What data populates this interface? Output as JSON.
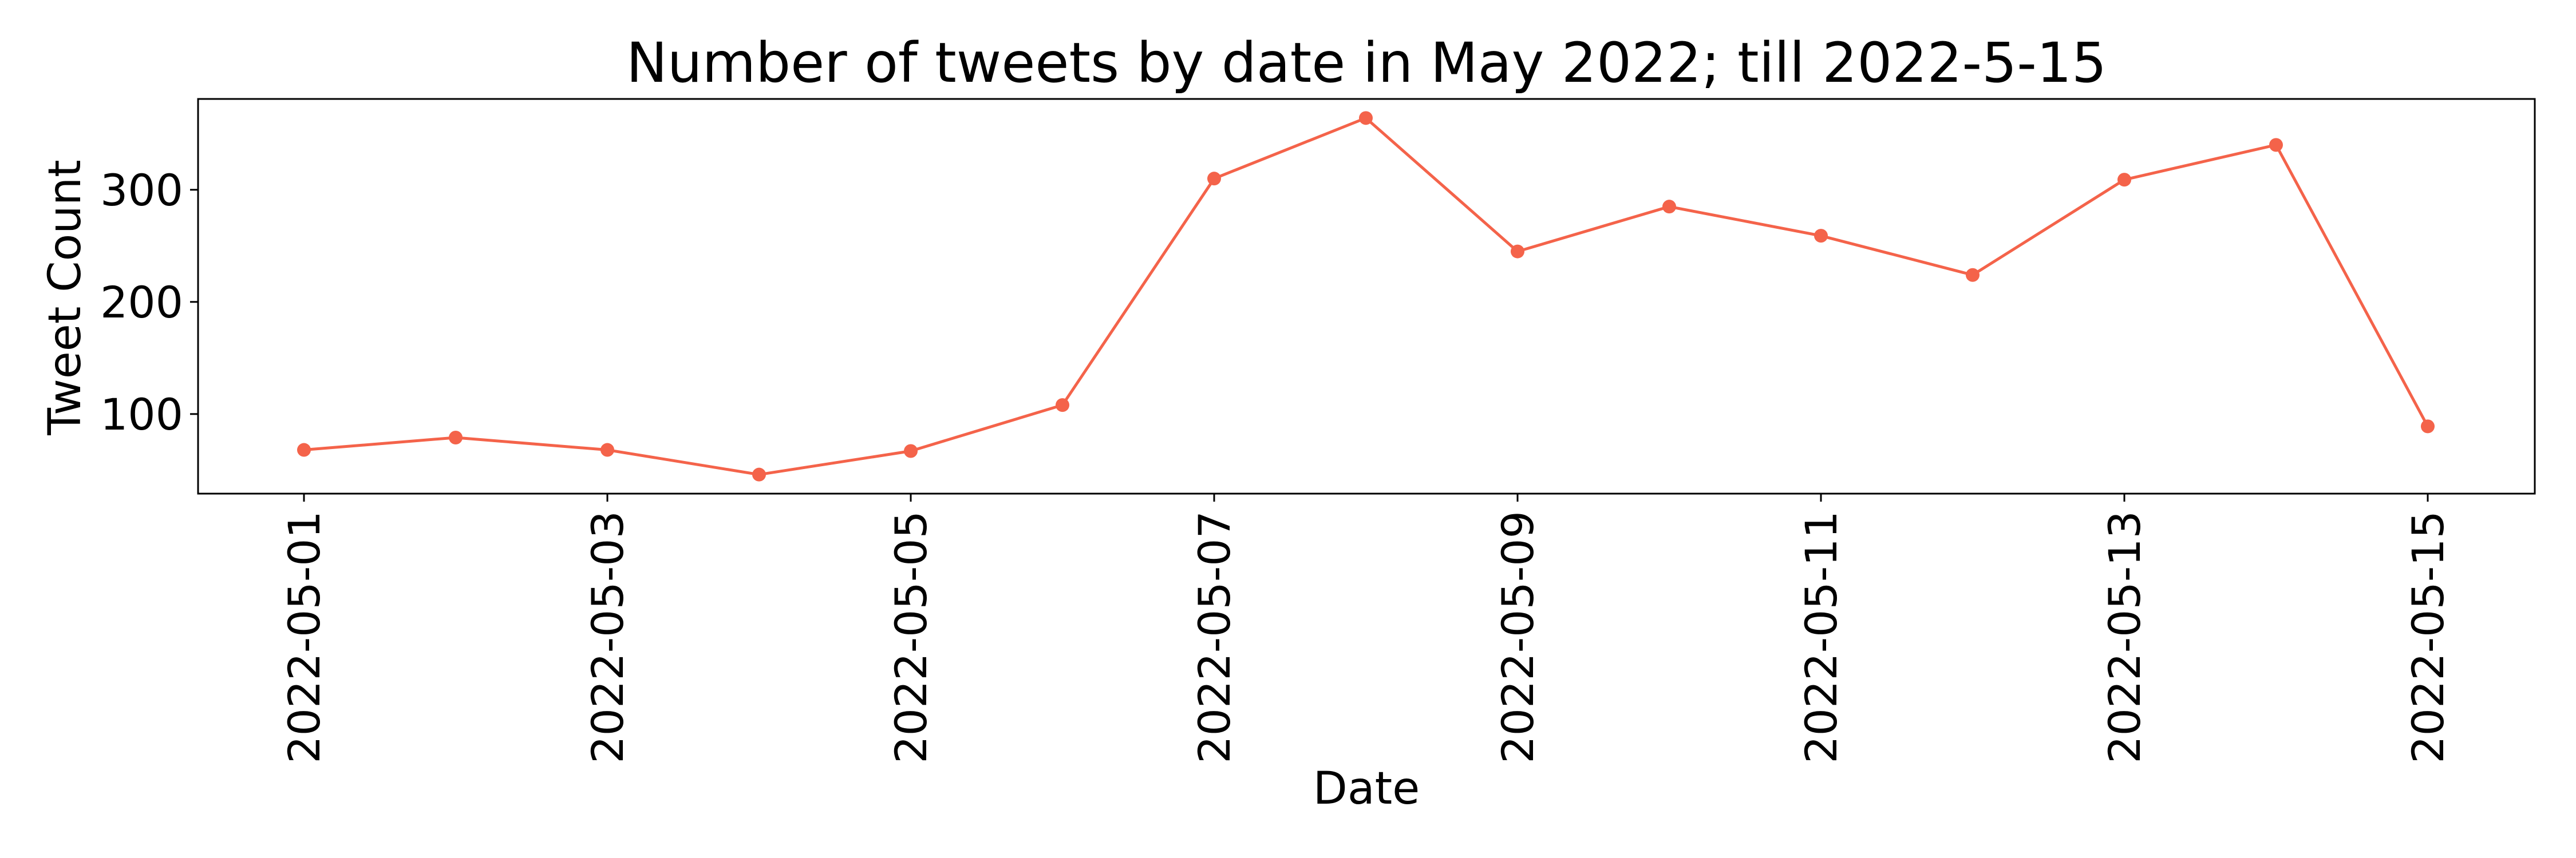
{
  "chart_data": {
    "type": "line",
    "title": "Number of tweets by date in May 2022; till 2022-5-15",
    "xlabel": "Date",
    "ylabel": "Tweet Count",
    "x": [
      "2022-05-01",
      "2022-05-02",
      "2022-05-03",
      "2022-05-04",
      "2022-05-05",
      "2022-05-06",
      "2022-05-07",
      "2022-05-08",
      "2022-05-09",
      "2022-05-10",
      "2022-05-11",
      "2022-05-12",
      "2022-05-13",
      "2022-05-14",
      "2022-05-15"
    ],
    "series": [
      {
        "values": [
          68,
          79,
          68,
          46,
          67,
          108,
          310,
          364,
          245,
          285,
          259,
          224,
          309,
          340,
          89
        ]
      }
    ],
    "x_ticks": [
      "2022-05-01",
      "2022-05-03",
      "2022-05-05",
      "2022-05-07",
      "2022-05-09",
      "2022-05-11",
      "2022-05-13",
      "2022-05-15"
    ],
    "y_ticks": [
      100,
      200,
      300
    ],
    "ylim": [
      29,
      381
    ],
    "grid": false,
    "line_color": "#f4634a",
    "marker": "circle"
  }
}
